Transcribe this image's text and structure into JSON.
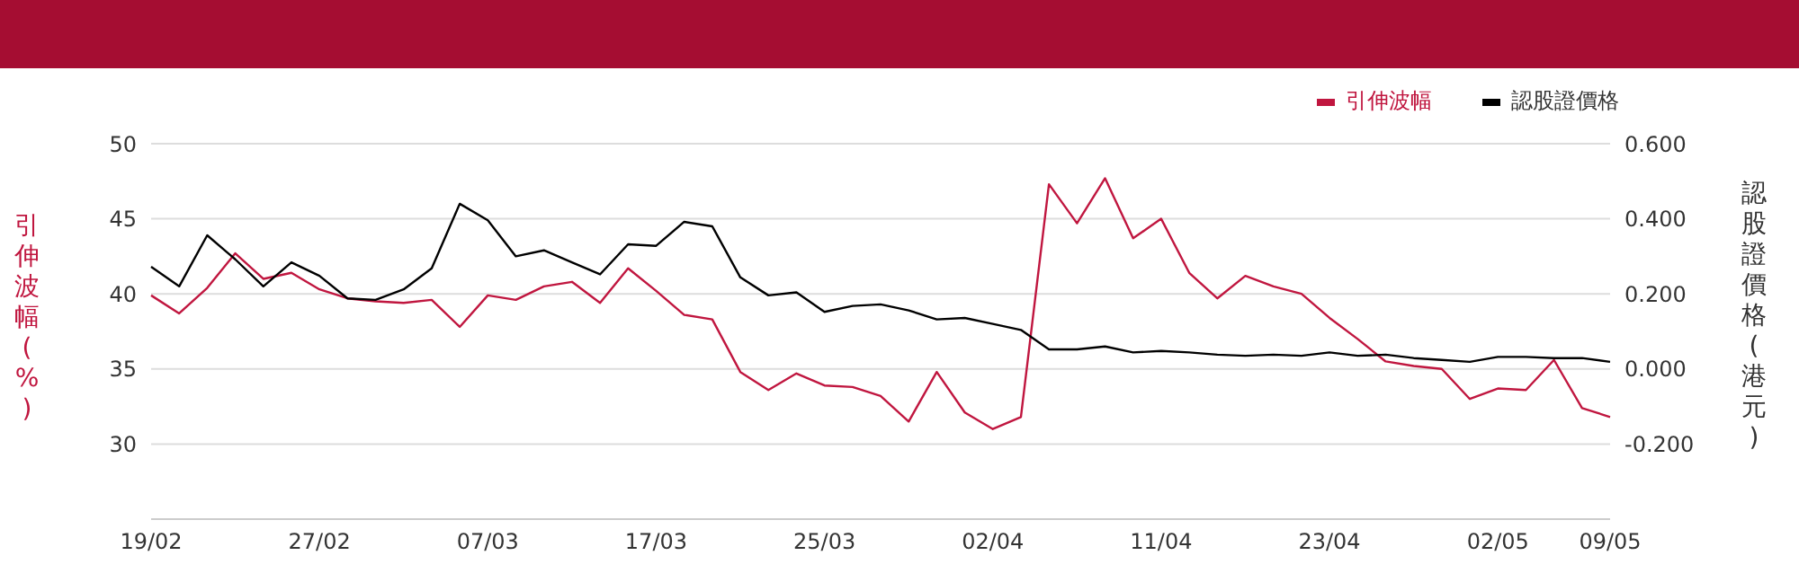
{
  "chart_data": {
    "type": "line",
    "ylabel": "引伸波幅(%)",
    "y2label": "認股證價格(港元)",
    "categories": [
      "19/02",
      null,
      null,
      null,
      null,
      null,
      "27/02",
      null,
      null,
      null,
      null,
      null,
      "07/03",
      null,
      null,
      null,
      null,
      null,
      "17/03",
      null,
      null,
      null,
      null,
      null,
      "25/03",
      null,
      null,
      null,
      null,
      null,
      "02/04",
      null,
      null,
      null,
      null,
      null,
      "11/04",
      null,
      null,
      null,
      null,
      null,
      "23/04",
      null,
      null,
      null,
      null,
      null,
      "02/05",
      null,
      null,
      null,
      "09/05"
    ],
    "series": [
      {
        "name": "引伸波幅",
        "color": "#c0163f",
        "values": [
          39.9,
          38.7,
          40.4,
          42.7,
          41.0,
          41.4,
          40.3,
          39.7,
          39.5,
          39.4,
          39.6,
          37.8,
          39.9,
          39.6,
          40.5,
          40.8,
          39.4,
          41.7,
          40.2,
          38.6,
          38.3,
          34.8,
          33.6,
          34.7,
          33.9,
          33.8,
          33.2,
          31.5,
          34.8,
          32.1,
          31.0,
          31.8,
          47.3,
          44.7,
          47.7,
          43.7,
          45.0,
          41.4,
          39.7,
          41.2,
          40.5,
          40.0,
          38.4,
          37.0,
          35.5,
          35.2,
          35.0,
          33.0,
          33.7,
          33.6,
          35.6,
          32.4,
          31.8
        ]
      },
      {
        "name": "認股證價格",
        "color": "#000000",
        "axis": "y2",
        "values": [
          0.272,
          0.22,
          0.356,
          0.292,
          0.22,
          0.284,
          0.248,
          0.188,
          0.184,
          0.212,
          0.268,
          0.44,
          0.396,
          0.3,
          0.316,
          0.284,
          0.252,
          0.332,
          0.328,
          0.392,
          0.38,
          0.244,
          0.196,
          0.204,
          0.152,
          0.168,
          0.172,
          0.156,
          0.132,
          0.136,
          0.12,
          0.104,
          0.052,
          0.052,
          0.06,
          0.044,
          0.048,
          0.044,
          0.038,
          0.035,
          0.038,
          0.035,
          0.044,
          0.035,
          0.038,
          0.029,
          0.024,
          0.019,
          0.032,
          0.032,
          0.029,
          0.029,
          0.019
        ]
      }
    ],
    "ylim": [
      25,
      50
    ],
    "yticks": [
      30,
      35,
      40,
      45,
      50
    ],
    "y2lim": [
      -0.4,
      0.6
    ],
    "y2ticks": [
      {
        "value": -0.2,
        "label": "-0.200"
      },
      {
        "value": 0,
        "label": "0.000"
      },
      {
        "value": 0.2,
        "label": "0.200"
      },
      {
        "value": 0.4,
        "label": "0.400"
      },
      {
        "value": 0.6,
        "label": "0.600"
      }
    ],
    "grid": "y",
    "legend": "top right",
    "marker": "none",
    "line_style": "solid"
  }
}
